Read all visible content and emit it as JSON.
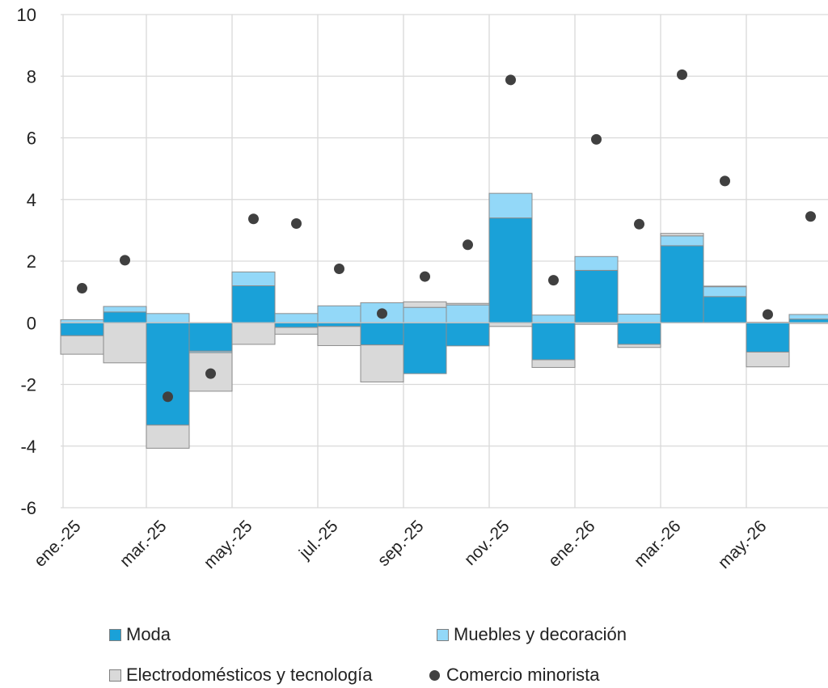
{
  "chart_data": {
    "type": "bar",
    "stacked": true,
    "categories": [
      "ene.-25",
      "feb.-25",
      "mar.-25",
      "abr.-25",
      "may.-25",
      "jun.-25",
      "jul.-25",
      "ago.-25",
      "sep.-25",
      "oct.-25",
      "nov.-25",
      "dic.-25",
      "ene.-26",
      "feb.-26",
      "mar.-26",
      "abr.-26",
      "may.-26",
      "jun.-26"
    ],
    "x_tick_labels": [
      "ene.-25",
      "mar.-25",
      "may.-25",
      "jul.-25",
      "sep.-25",
      "nov.-25",
      "ene.-26",
      "mar.-26",
      "may.-26"
    ],
    "ylim": [
      -6,
      10
    ],
    "y_ticks": [
      -6,
      -4,
      -2,
      0,
      2,
      4,
      6,
      8,
      10
    ],
    "grid": true,
    "legend_position": "bottom",
    "series": [
      {
        "name": "Moda",
        "type": "bar",
        "color": "#1aa1d8",
        "values": [
          -0.42,
          0.35,
          -3.32,
          -0.92,
          1.2,
          -0.15,
          -0.12,
          -0.72,
          -1.65,
          -0.75,
          3.4,
          -1.2,
          1.7,
          -0.7,
          2.5,
          0.85,
          -0.95,
          0.12
        ]
      },
      {
        "name": "Muebles y decoración",
        "type": "bar",
        "color": "#93d8f8",
        "values": [
          0.1,
          0.18,
          0.3,
          -0.05,
          0.45,
          0.3,
          0.55,
          0.65,
          0.5,
          0.58,
          0.8,
          0.25,
          0.45,
          0.28,
          0.32,
          0.32,
          0.02,
          0.15
        ]
      },
      {
        "name": "Electrodomésticos y tecnología",
        "type": "bar",
        "color": "#d9d9d9",
        "values": [
          -0.6,
          -1.3,
          -0.75,
          -1.25,
          -0.7,
          -0.22,
          -0.62,
          -1.2,
          0.18,
          0.05,
          -0.12,
          -0.25,
          -0.05,
          -0.1,
          0.08,
          0.02,
          -0.48,
          -0.02
        ]
      },
      {
        "name": "Comercio minorista",
        "type": "scatter",
        "color": "#404040",
        "values": [
          1.12,
          2.03,
          -2.4,
          -1.65,
          3.37,
          3.22,
          1.75,
          0.3,
          1.5,
          2.53,
          7.88,
          1.38,
          5.95,
          3.2,
          8.05,
          4.6,
          0.27,
          3.45
        ]
      }
    ]
  },
  "legend": [
    {
      "label": "Moda",
      "marker": "square",
      "color": "#1aa1d8"
    },
    {
      "label": "Muebles y decoración",
      "marker": "square",
      "color": "#93d8f8"
    },
    {
      "label": "Electrodomésticos y tecnología",
      "marker": "square",
      "color": "#d9d9d9"
    },
    {
      "label": "Comercio minorista",
      "marker": "circle",
      "color": "#404040"
    }
  ]
}
